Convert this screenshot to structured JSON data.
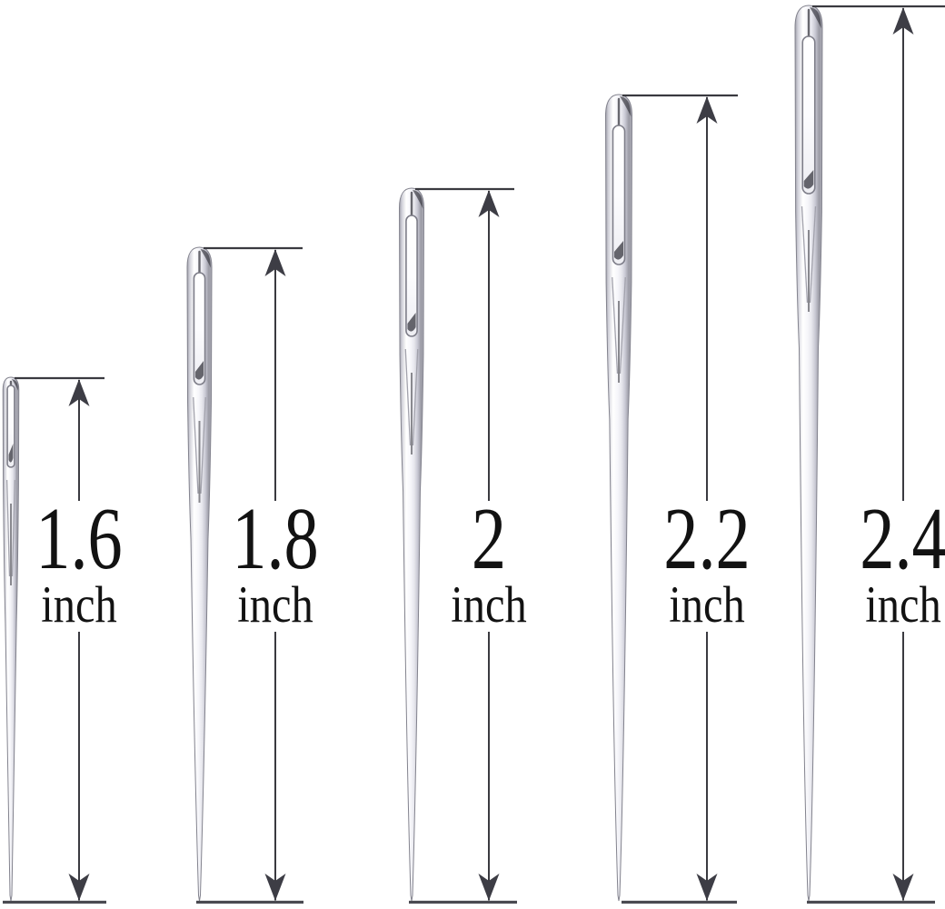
{
  "diagram": {
    "unit": "inch",
    "items": [
      {
        "size": "1.6",
        "unit": "inch"
      },
      {
        "size": "1.8",
        "unit": "inch"
      },
      {
        "size": "2",
        "unit": "inch"
      },
      {
        "size": "2.2",
        "unit": "inch"
      },
      {
        "size": "2.4",
        "unit": "inch"
      }
    ]
  },
  "colors": {
    "background": "#ffffff",
    "text": "#121212",
    "measure_line": "#3a3a40",
    "measure_bottom_line": "#4b4b52",
    "arrowhead": "#3d3d45",
    "needle_edge": "#83838e",
    "needle_bright": "#ffffff",
    "needle_shade": "#9b9ba5",
    "needle_hole_rim": "#7d7d88",
    "needle_dark_detail": "#3e3e46"
  }
}
